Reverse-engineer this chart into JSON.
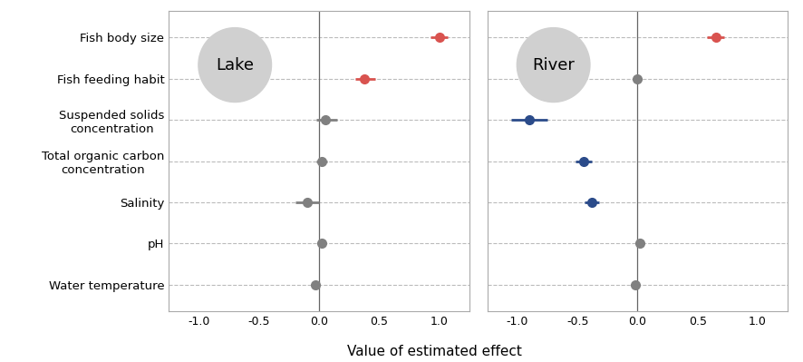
{
  "categories": [
    "Fish body size",
    "Fish feeding habit",
    "Suspended solids\nconcentration",
    "Total organic carbon\nconcentration",
    "Salinity",
    "pH",
    "Water temperature"
  ],
  "lake": {
    "label": "Lake",
    "points": [
      1.0,
      0.38,
      0.05,
      0.02,
      -0.1,
      0.02,
      -0.03
    ],
    "lo": [
      0.93,
      0.3,
      -0.02,
      -0.02,
      -0.2,
      0.0,
      -0.05
    ],
    "hi": [
      1.07,
      0.47,
      0.15,
      0.07,
      0.0,
      0.04,
      0.01
    ],
    "colors": [
      "#d9534f",
      "#d9534f",
      "#808080",
      "#808080",
      "#808080",
      "#808080",
      "#808080"
    ],
    "xlim": [
      -1.25,
      1.25
    ],
    "xticks": [
      -1.0,
      -0.5,
      0.0,
      0.5,
      1.0
    ]
  },
  "river": {
    "label": "River",
    "points": [
      0.65,
      0.0,
      -0.9,
      -0.45,
      -0.38,
      0.02,
      -0.02
    ],
    "lo": [
      0.58,
      -0.02,
      -1.05,
      -0.52,
      -0.44,
      0.0,
      -0.05
    ],
    "hi": [
      0.72,
      0.02,
      -0.75,
      -0.38,
      -0.32,
      0.04,
      0.01
    ],
    "colors": [
      "#d9534f",
      "#808080",
      "#2b4b8a",
      "#2b4b8a",
      "#2b4b8a",
      "#808080",
      "#808080"
    ],
    "xlim": [
      -1.25,
      1.25
    ],
    "xticks": [
      -1.0,
      -0.5,
      0.0,
      0.5,
      1.0
    ]
  },
  "xlabel": "Value of estimated effect",
  "background_color": "#ffffff",
  "panel_bg": "#ffffff",
  "grid_color": "#bbbbbb",
  "label_fontsize": 9.5,
  "tick_fontsize": 9
}
